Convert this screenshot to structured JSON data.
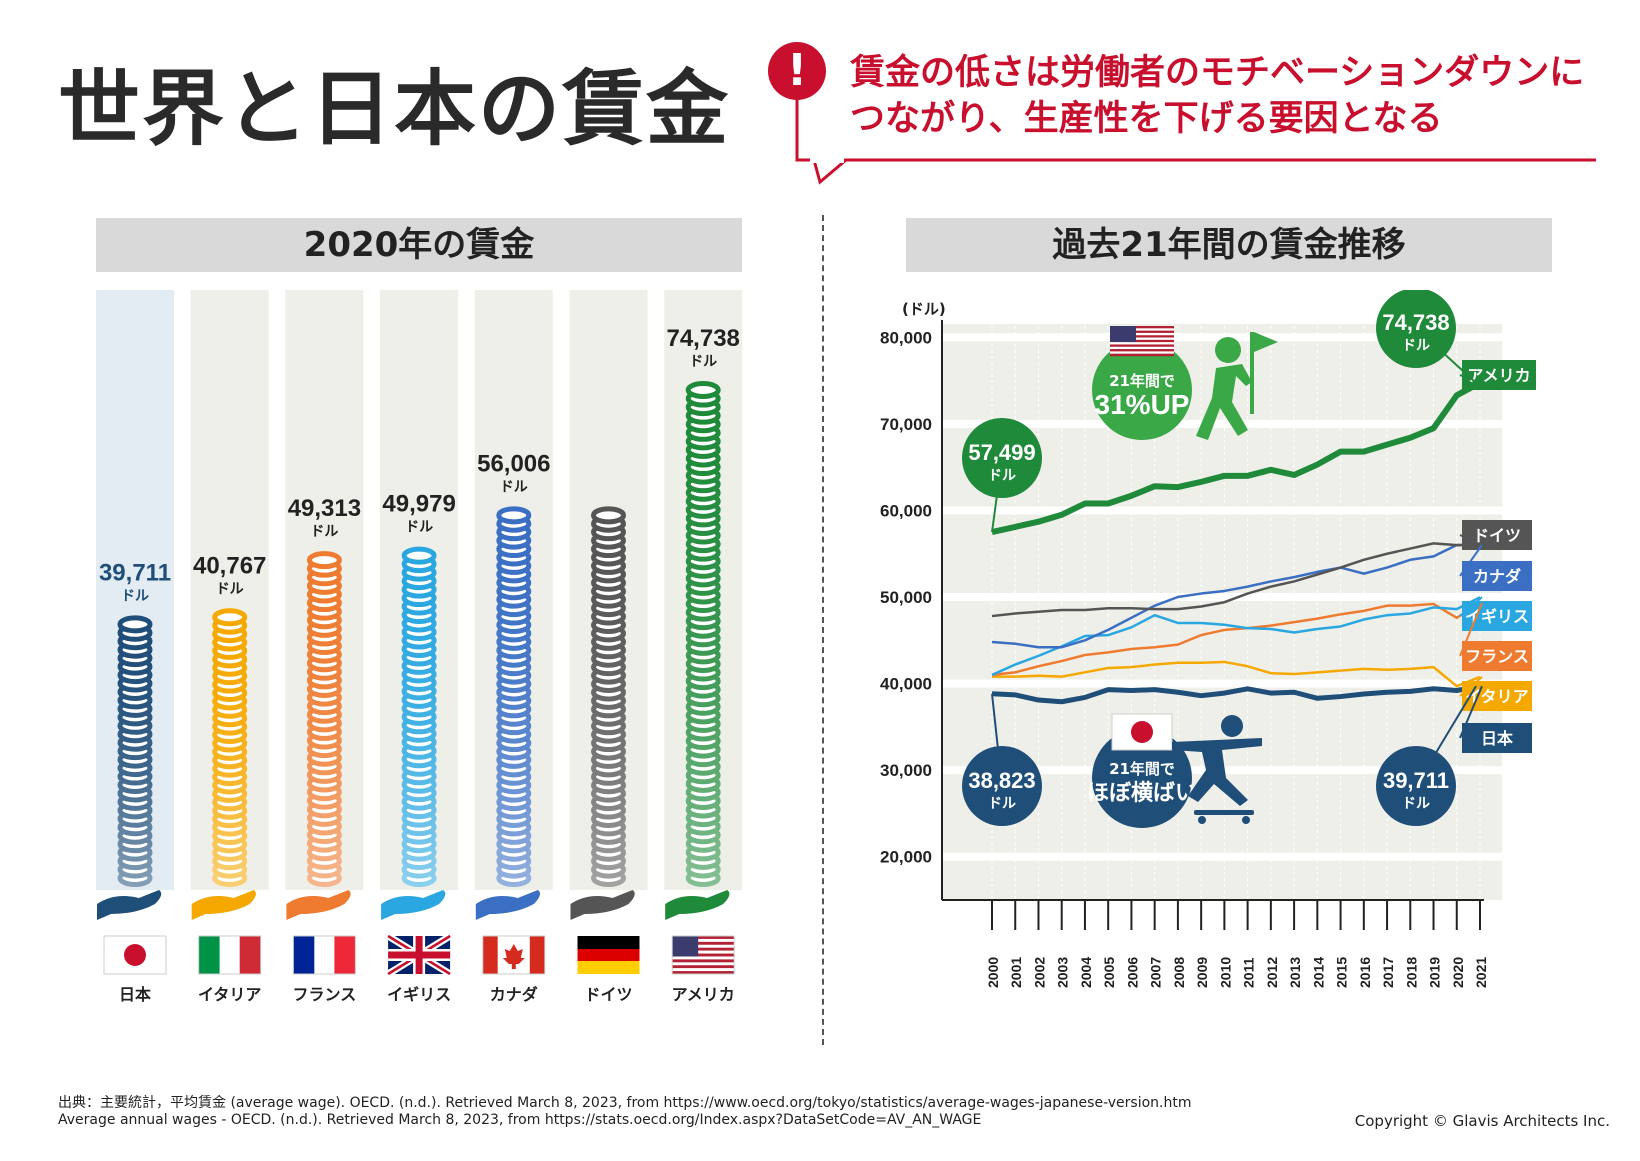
{
  "title": "世界と日本の賃金",
  "callout": {
    "mark": "!",
    "line1": "賃金の低さは労働者のモチベーションダウンに",
    "line2": "つながり、生産性を下げる要因となる"
  },
  "left_panel": {
    "title": "2020年の賃金"
  },
  "right_panel": {
    "title": "過去21年間の賃金推移"
  },
  "unit": "ドル",
  "y_unit": "(ドル)",
  "colors": {
    "japan": "#1f4e79",
    "italy": "#f5a800",
    "france": "#ee7b30",
    "uk": "#2aa7e0",
    "canada": "#3a6fc4",
    "germany": "#555555",
    "usa": "#1f8a3a",
    "accent": "#c8102e"
  },
  "chart_data": [
    {
      "type": "bar",
      "title": "2020年の賃金",
      "categories": [
        "日本",
        "イタリア",
        "フランス",
        "イギリス",
        "カナダ",
        "ドイツ",
        "アメリカ"
      ],
      "values": [
        39711,
        40767,
        49313,
        49979,
        56006,
        56006,
        74738
      ],
      "value_labels": [
        "39,711",
        "40,767",
        "49,313",
        "49,979",
        "56,006",
        "",
        "74,738"
      ],
      "ylabel": "ドル"
    },
    {
      "type": "line",
      "title": "過去21年間の賃金推移",
      "x": [
        2000,
        2001,
        2002,
        2003,
        2004,
        2005,
        2006,
        2007,
        2008,
        2009,
        2010,
        2011,
        2012,
        2013,
        2014,
        2015,
        2016,
        2017,
        2018,
        2019,
        2020,
        2021
      ],
      "x_tick_labels": [
        "2000",
        "2001",
        "2002",
        "2003",
        "2004",
        "2005",
        "2006",
        "2007",
        "2008",
        "2009",
        "2010",
        "2011",
        "2012",
        "2013",
        "2014",
        "2015",
        "2016",
        "2017",
        "2018",
        "2019",
        "2020",
        "2021"
      ],
      "ylim": [
        15000,
        82000
      ],
      "y_ticks": [
        20000,
        30000,
        40000,
        50000,
        60000,
        70000,
        80000
      ],
      "y_tick_labels": [
        "20,000",
        "30,000",
        "40,000",
        "50,000",
        "60,000",
        "70,000",
        "80,000"
      ],
      "series": [
        {
          "name": "アメリカ",
          "key": "usa",
          "width": 6,
          "values": [
            57499,
            58100,
            58700,
            59500,
            60800,
            60800,
            61700,
            62800,
            62700,
            63300,
            64000,
            64000,
            64700,
            64100,
            65300,
            66800,
            66800,
            67600,
            68400,
            69500,
            73300,
            74738
          ]
        },
        {
          "name": "ドイツ",
          "key": "germany",
          "width": 2.5,
          "values": [
            47800,
            48100,
            48300,
            48500,
            48500,
            48700,
            48700,
            48600,
            48600,
            48900,
            49400,
            50400,
            51200,
            51800,
            52600,
            53400,
            54300,
            55000,
            55600,
            56200,
            56000,
            56006
          ]
        },
        {
          "name": "カナダ",
          "key": "canada",
          "width": 2.5,
          "values": [
            44800,
            44600,
            44200,
            44200,
            45000,
            46200,
            47600,
            49000,
            50000,
            50400,
            50700,
            51200,
            51800,
            52300,
            52900,
            53400,
            52700,
            53400,
            54300,
            54700,
            56006,
            56000
          ]
        },
        {
          "name": "イギリス",
          "key": "uk",
          "width": 2.5,
          "values": [
            41000,
            42200,
            43200,
            44300,
            45500,
            45600,
            46500,
            47900,
            47000,
            47000,
            46800,
            46400,
            46300,
            45900,
            46300,
            46600,
            47400,
            47900,
            48100,
            48800,
            48600,
            49979
          ]
        },
        {
          "name": "フランス",
          "key": "france",
          "width": 2.5,
          "values": [
            41000,
            41300,
            42000,
            42600,
            43300,
            43600,
            44000,
            44200,
            44500,
            45600,
            46200,
            46400,
            46700,
            47100,
            47500,
            48000,
            48400,
            49000,
            49000,
            49200,
            47600,
            49313
          ]
        },
        {
          "name": "イタリア",
          "key": "italy",
          "width": 2.5,
          "values": [
            40800,
            40800,
            40900,
            40800,
            41300,
            41800,
            41900,
            42200,
            42400,
            42400,
            42500,
            42000,
            41200,
            41100,
            41300,
            41500,
            41700,
            41600,
            41700,
            41900,
            39700,
            40767
          ]
        },
        {
          "name": "日本",
          "key": "japan",
          "width": 5,
          "values": [
            38823,
            38700,
            38100,
            37900,
            38400,
            39300,
            39200,
            39300,
            39000,
            38600,
            38900,
            39400,
            38900,
            39000,
            38300,
            38500,
            38800,
            39000,
            39100,
            39400,
            39200,
            39711
          ]
        }
      ],
      "legend": [
        "ドイツ",
        "カナダ",
        "イギリス",
        "フランス",
        "イタリア",
        "日本",
        "アメリカ"
      ],
      "annotations": {
        "usa_start": "57,499",
        "usa_end": "74,738",
        "japan_start": "38,823",
        "japan_end": "39,711",
        "usa_badge_line1": "21年間で",
        "usa_badge_line2": "31%UP",
        "japan_badge_line1": "21年間で",
        "japan_badge_line2": "ほぼ横ばい"
      }
    }
  ],
  "source": {
    "line1": "出典：主要統計，平均賃金 (average wage). OECD. (n.d.). Retrieved March 8, 2023, from https://www.oecd.org/tokyo/statistics/average-wages-japanese-version.htm",
    "line2": "Average annual wages - OECD. (n.d.). Retrieved March 8, 2023, from https://stats.oecd.org/Index.aspx?DataSetCode=AV_AN_WAGE"
  },
  "copyright": "Copyright © Glavis Architects Inc."
}
